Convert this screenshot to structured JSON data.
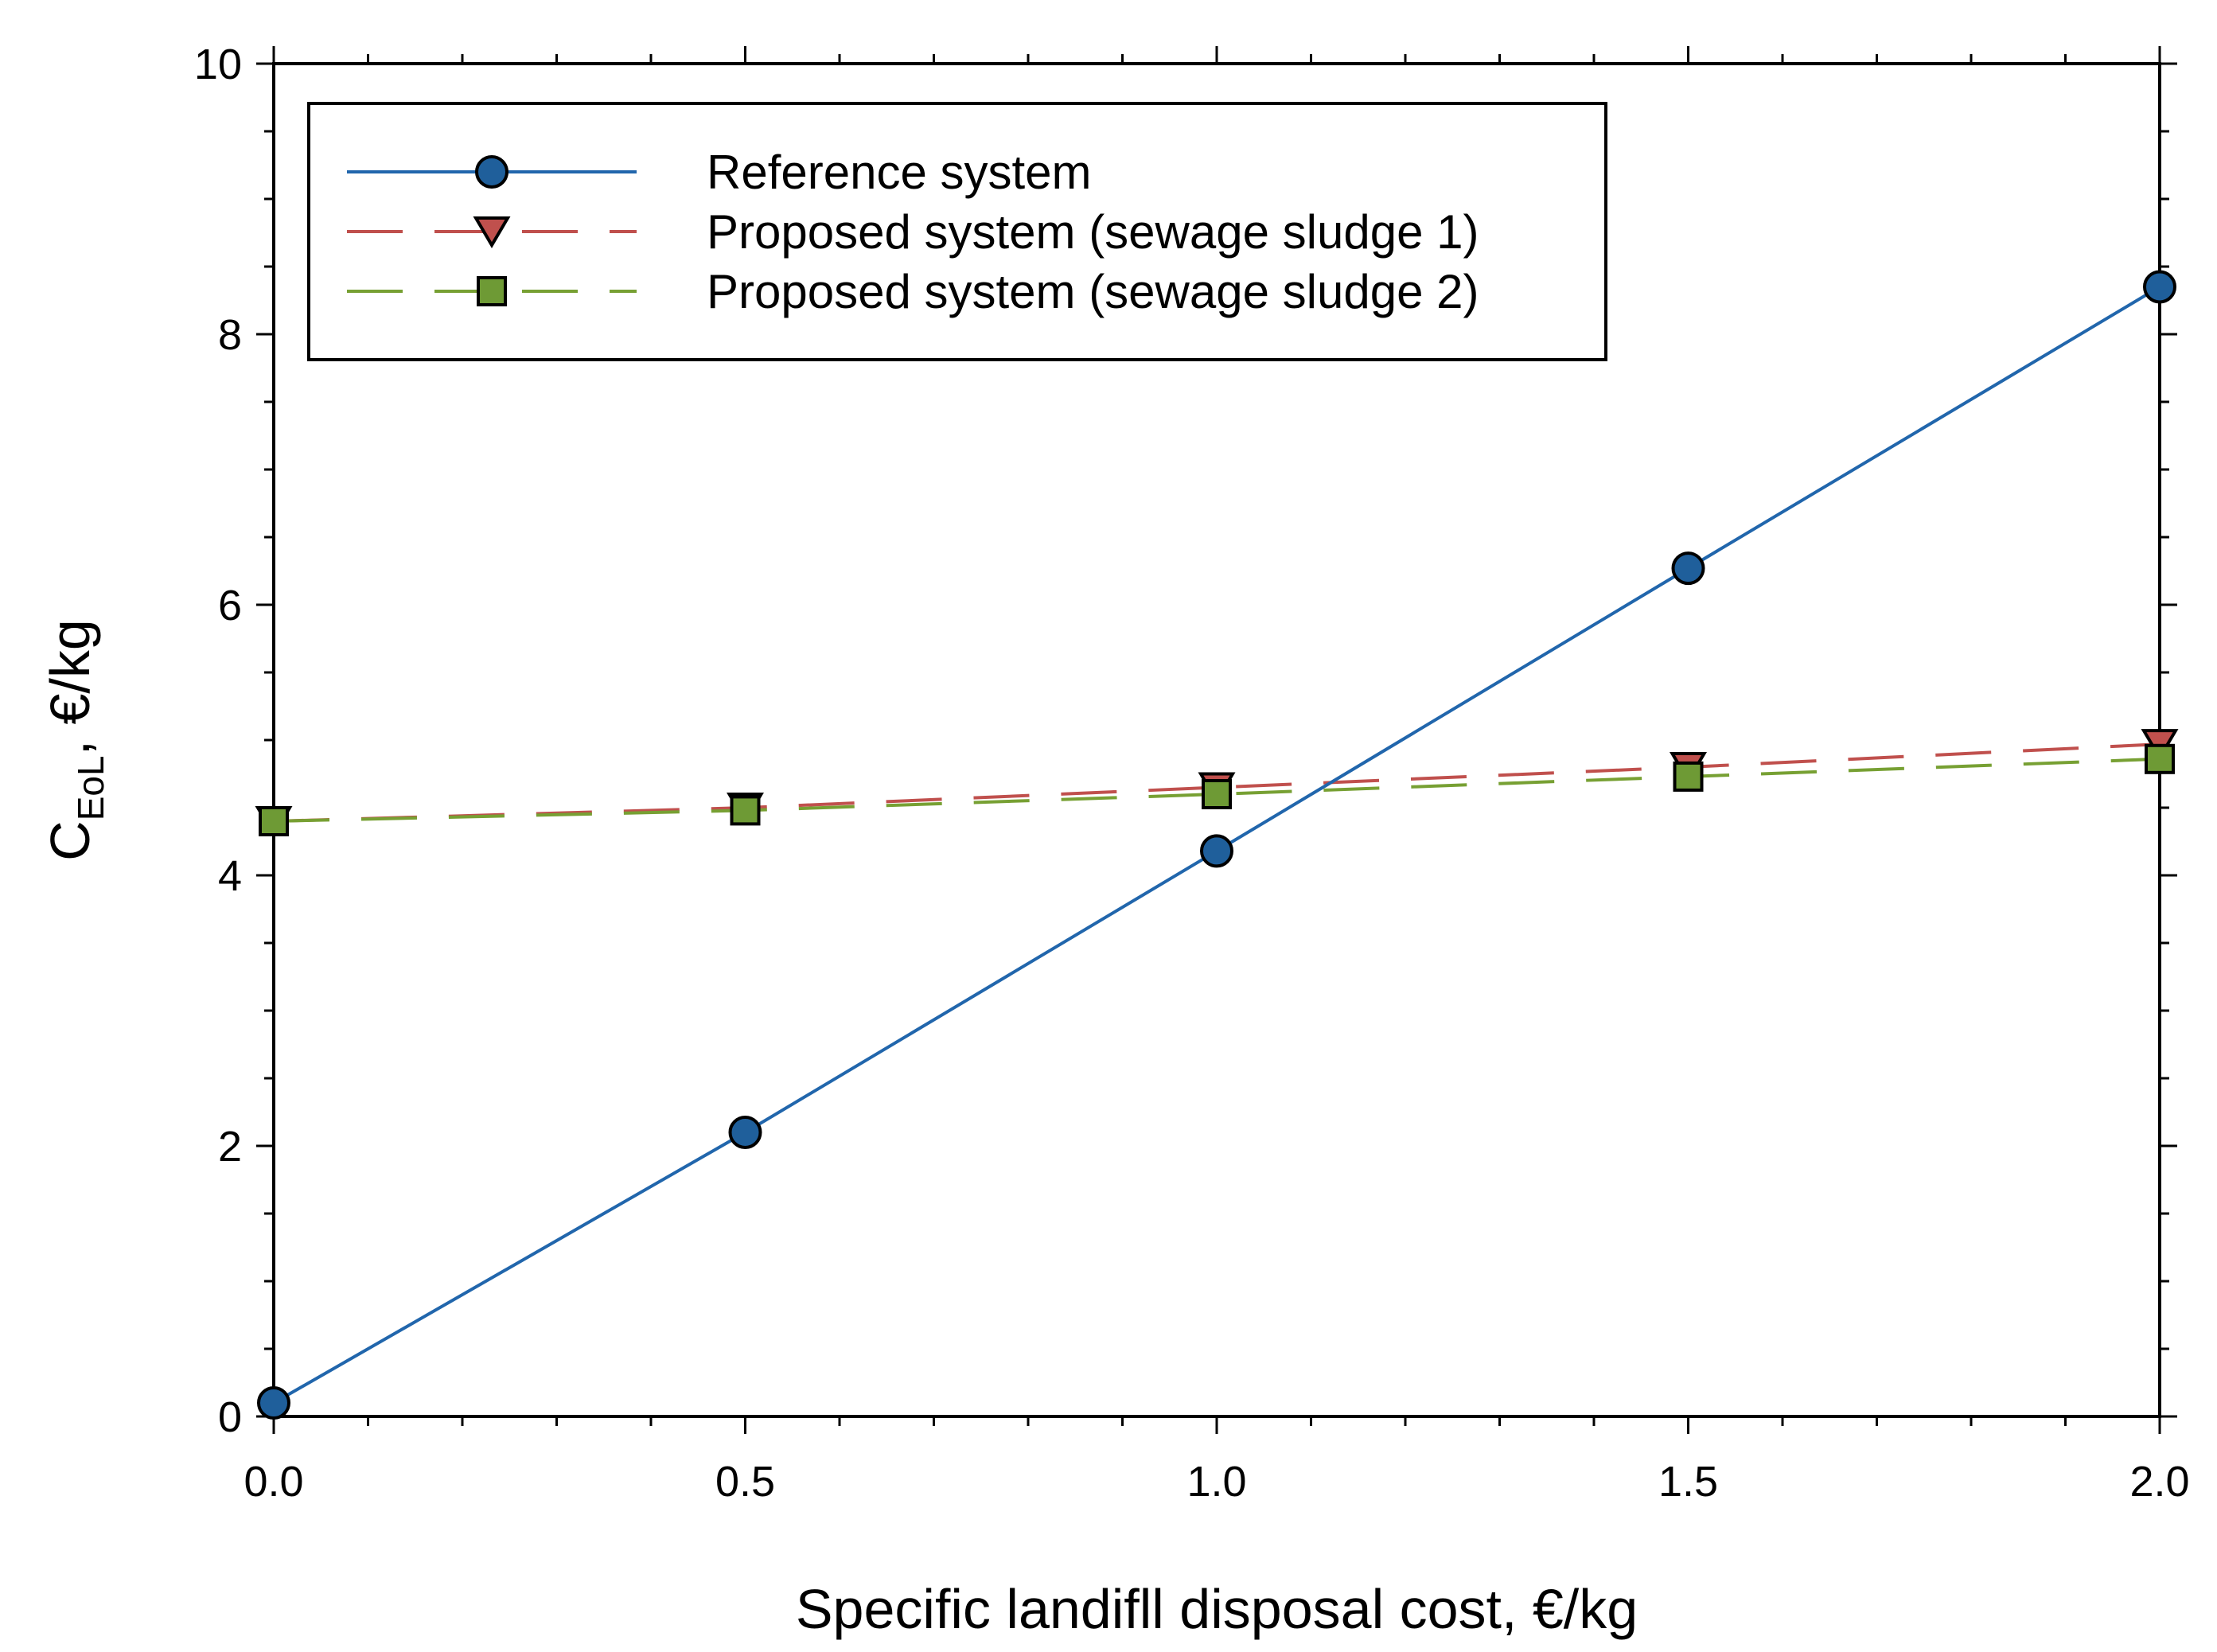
{
  "chart_data": {
    "type": "line",
    "title": "",
    "xlabel": "Specific landifll disposal cost, €/kg",
    "ylabel_main": "C",
    "ylabel_sub": "EoL",
    "ylabel_unit": ", €/kg",
    "xlim": [
      0,
      2
    ],
    "ylim": [
      0,
      10
    ],
    "x_ticks": [
      0,
      0.5,
      1,
      1.5,
      2
    ],
    "x_tick_labels": [
      "0.0",
      "0.5",
      "1.0",
      "1.5",
      "2.0"
    ],
    "y_ticks": [
      0,
      2,
      4,
      6,
      8,
      10
    ],
    "y_tick_labels": [
      "0",
      "2",
      "4",
      "6",
      "8",
      "10"
    ],
    "x_minor_step": 0.1,
    "y_minor_step": 0.5,
    "grid": false,
    "legend_position": "top-left",
    "x": [
      0,
      0.5,
      1,
      1.5,
      2
    ],
    "series": [
      {
        "name": "Reference system",
        "values": [
          0.1,
          2.1,
          4.18,
          6.27,
          8.35
        ],
        "color": "#2166ac",
        "marker": "circle",
        "marker_color": "#1f5f9b",
        "dash": "solid"
      },
      {
        "name": "Proposed system (sewage sludge 1)",
        "values": [
          4.4,
          4.5,
          4.65,
          4.8,
          4.97
        ],
        "color": "#c0504d",
        "marker": "triangle-down",
        "marker_color": "#c0504d",
        "dash": "long-dash"
      },
      {
        "name": "Proposed system (sewage sludge 2)",
        "values": [
          4.4,
          4.48,
          4.6,
          4.73,
          4.86
        ],
        "color": "#77a033",
        "marker": "square",
        "marker_color": "#6e9a35",
        "dash": "long-dash"
      }
    ]
  }
}
